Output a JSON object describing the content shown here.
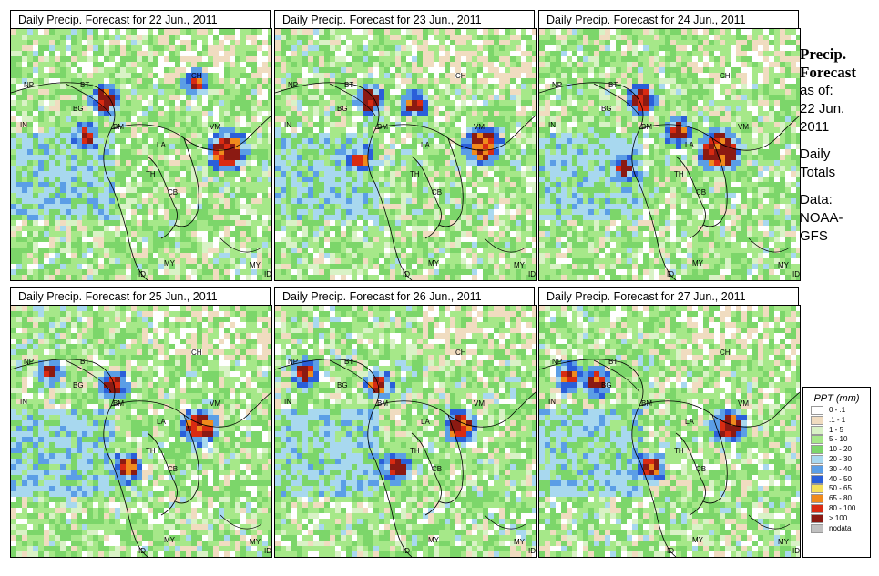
{
  "panels": [
    {
      "title": "Daily Precip. Forecast for  22 Jun., 2011"
    },
    {
      "title": "Daily Precip. Forecast for  23 Jun., 2011"
    },
    {
      "title": "Daily Precip. Forecast for  24 Jun., 2011"
    },
    {
      "title": "Daily Precip. Forecast for  25 Jun., 2011"
    },
    {
      "title": "Daily Precip. Forecast for  26 Jun., 2011"
    },
    {
      "title": "Daily Precip. Forecast for  27 Jun., 2011"
    }
  ],
  "map_labels": [
    "NP",
    "BT",
    "BG",
    "IN",
    "BM",
    "CH",
    "VM",
    "LA",
    "TH",
    "CB",
    "MY",
    "ID",
    "MY",
    "ID"
  ],
  "sidebar": {
    "title_line1": "Precip.",
    "title_line2": "Forecast",
    "asof_line1": "as of:",
    "asof_line2": "22 Jun.",
    "asof_line3": "2011",
    "totals_line1": "Daily",
    "totals_line2": "Totals",
    "data_line1": "Data:",
    "data_line2": "NOAA-",
    "data_line3": "GFS"
  },
  "legend": {
    "title": "PPT (mm)",
    "items": [
      {
        "label": "0 - .1",
        "color": "#ffffff"
      },
      {
        "label": ".1 - 1",
        "color": "#f0dcc0"
      },
      {
        "label": "1 - 5",
        "color": "#d9f2c6"
      },
      {
        "label": "5 - 10",
        "color": "#a6e889"
      },
      {
        "label": "10 - 20",
        "color": "#7cd66a"
      },
      {
        "label": "20 - 30",
        "color": "#a8d8ef"
      },
      {
        "label": "30 - 40",
        "color": "#5b9ee6"
      },
      {
        "label": "40 - 50",
        "color": "#2a5fd9"
      },
      {
        "label": "50 - 65",
        "color": "#f5e05a"
      },
      {
        "label": "65 - 80",
        "color": "#f08a1c"
      },
      {
        "label": "80 - 100",
        "color": "#d92b12"
      },
      {
        "label": "> 100",
        "color": "#8b1a12"
      },
      {
        "label": "nodata",
        "color": "#c0c0c0"
      }
    ]
  }
}
